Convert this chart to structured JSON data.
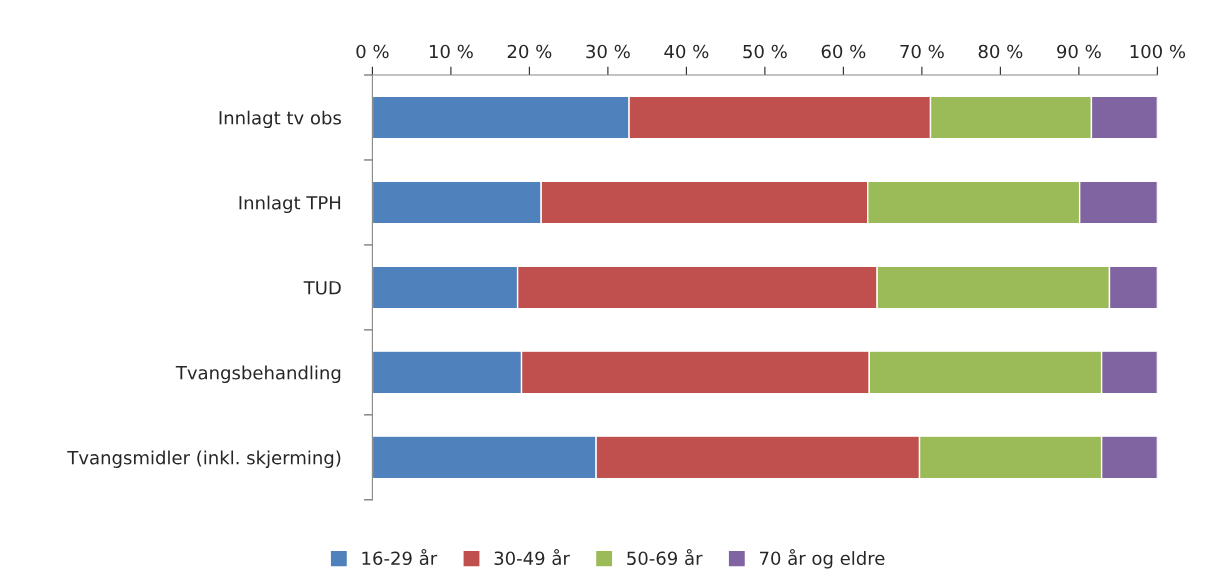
{
  "chart_data": {
    "type": "bar",
    "orientation": "horizontal",
    "stacked": true,
    "categories": [
      "Innlagt tv obs",
      "Innlagt TPH",
      "TUD",
      "Tvangsbehandling",
      "Tvangsmidler (inkl. skjerming)"
    ],
    "series": [
      {
        "name": "16-29 år",
        "color": "#4f81bd",
        "values": [
          32.7,
          21.5,
          18.5,
          19.0,
          28.5
        ]
      },
      {
        "name": "30-49 år",
        "color": "#c0504d",
        "values": [
          38.4,
          41.6,
          45.8,
          44.3,
          41.2
        ]
      },
      {
        "name": "50-69 år",
        "color": "#9bbb59",
        "values": [
          20.5,
          27.0,
          29.6,
          29.6,
          23.2
        ]
      },
      {
        "name": "70 år og eldre",
        "color": "#8064a2",
        "values": [
          8.4,
          9.9,
          6.1,
          7.1,
          7.1
        ]
      }
    ],
    "xlim": [
      0,
      100
    ],
    "xticks": [
      {
        "value": 0,
        "label": "0 %"
      },
      {
        "value": 10,
        "label": "10 %"
      },
      {
        "value": 20,
        "label": "20 %"
      },
      {
        "value": 30,
        "label": "30 %"
      },
      {
        "value": 40,
        "label": "40 %"
      },
      {
        "value": 50,
        "label": "50 %"
      },
      {
        "value": 60,
        "label": "60 %"
      },
      {
        "value": 70,
        "label": "70 %"
      },
      {
        "value": 80,
        "label": "80 %"
      },
      {
        "value": 90,
        "label": "90 %"
      },
      {
        "value": 100,
        "label": "100 %"
      }
    ],
    "grid": false,
    "legend": "bottom"
  }
}
